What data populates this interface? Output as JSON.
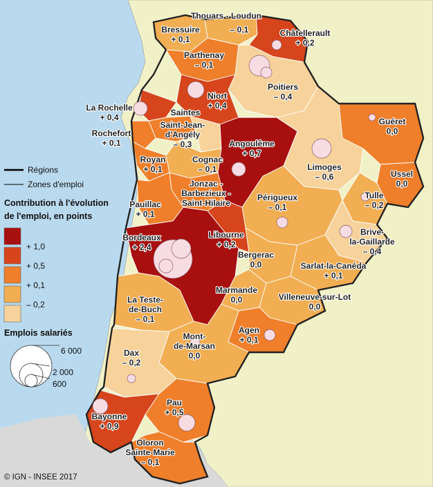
{
  "colors": {
    "sea": "#b9d9ee",
    "outside_land": "#f1f1c8",
    "spain": "#d9d9d9",
    "class_0": "#a80f0f",
    "class_1": "#d6451c",
    "class_2": "#ef7f2a",
    "class_3": "#f2ae52",
    "class_4": "#f7d39b",
    "bubble": "#f7dce3"
  },
  "legend": {
    "regions_label": "Régions",
    "zones_label": "Zones d'emploi",
    "contribution_title_line1": "Contribution à l'évolution",
    "contribution_title_line2": "de l'emploi, en points",
    "class_breaks": [
      "+ 1,0",
      "+ 0,5",
      "+ 0,1",
      "– 0,2"
    ],
    "emplois_title": "Emplois salariés",
    "bubble_values": [
      "6 000",
      "2 000",
      "600"
    ]
  },
  "copyright": "© IGN - INSEE 2017",
  "zones": [
    {
      "id": "thouars",
      "lines": [
        "Thouars - Loudun"
      ]
    },
    {
      "id": "bressuire",
      "lines": [
        "Bressuire",
        "+ 0,1"
      ]
    },
    {
      "id": "thouars_val",
      "lines": [
        "– 0,1"
      ]
    },
    {
      "id": "chatellerault",
      "lines": [
        "Châtellerault",
        "+ 0,2"
      ]
    },
    {
      "id": "parthenay",
      "lines": [
        "Parthenay",
        "– 0,1"
      ]
    },
    {
      "id": "poitiers",
      "lines": [
        "Poitiers",
        "– 0,4"
      ]
    },
    {
      "id": "niort",
      "lines": [
        "Niort",
        "+ 0,4"
      ]
    },
    {
      "id": "la_rochelle",
      "lines": [
        "La Rochelle",
        "+ 0,4"
      ]
    },
    {
      "id": "saintes",
      "lines": [
        "Saintes"
      ]
    },
    {
      "id": "saint_jean",
      "lines": [
        "Saint-Jean-",
        "d'Angély",
        "– 0,3"
      ]
    },
    {
      "id": "rochefort",
      "lines": [
        "Rochefort",
        "+ 0,1"
      ]
    },
    {
      "id": "gueret",
      "lines": [
        "Guéret",
        "0,0"
      ]
    },
    {
      "id": "angouleme",
      "lines": [
        "Angoulême",
        "+ 0,7"
      ]
    },
    {
      "id": "royan",
      "lines": [
        "Royan",
        "+ 0,1"
      ]
    },
    {
      "id": "cognac",
      "lines": [
        "Cognac",
        "– 0,1"
      ]
    },
    {
      "id": "limoges",
      "lines": [
        "Limoges",
        "– 0,6"
      ]
    },
    {
      "id": "ussel",
      "lines": [
        "Ussel",
        "0,0"
      ]
    },
    {
      "id": "jonzac",
      "lines": [
        "Jonzac -",
        "Barbezieux -",
        "Saint-Hilaire"
      ]
    },
    {
      "id": "tulle",
      "lines": [
        "Tulle",
        "– 0,2"
      ]
    },
    {
      "id": "perigueux",
      "lines": [
        "Périgueux",
        "– 0,1"
      ]
    },
    {
      "id": "pauillac",
      "lines": [
        "Pauillac",
        "+ 0,1"
      ]
    },
    {
      "id": "brive",
      "lines": [
        "Brive-",
        "la-Gaillarde",
        "– 0,4"
      ]
    },
    {
      "id": "bordeaux",
      "lines": [
        "Bordeaux",
        "+ 2,4"
      ]
    },
    {
      "id": "libourne",
      "lines": [
        "Libourne",
        "+ 0,2"
      ]
    },
    {
      "id": "bergerac",
      "lines": [
        "Bergerac",
        "0,0"
      ]
    },
    {
      "id": "sarlat",
      "lines": [
        "Sarlat-la-Canéda",
        "+ 0,1"
      ]
    },
    {
      "id": "marmande",
      "lines": [
        "Marmande",
        "0,0"
      ]
    },
    {
      "id": "la_teste",
      "lines": [
        "La Teste-",
        "de-Buch",
        "– 0,1"
      ]
    },
    {
      "id": "villeneuve",
      "lines": [
        "Villeneuve-sur-Lot",
        "0,0"
      ]
    },
    {
      "id": "agen",
      "lines": [
        "Agen",
        "+ 0,1"
      ]
    },
    {
      "id": "mont_de_marsan",
      "lines": [
        "Mont-",
        "de-Marsan",
        "0,0"
      ]
    },
    {
      "id": "dax",
      "lines": [
        "Dax",
        "– 0,2"
      ]
    },
    {
      "id": "bayonne",
      "lines": [
        "Bayonne",
        "+ 0,9"
      ]
    },
    {
      "id": "pau",
      "lines": [
        "Pau",
        "+ 0,5"
      ]
    },
    {
      "id": "oloron",
      "lines": [
        "Oloron",
        "Sainte-Marie",
        "– 0,1"
      ]
    }
  ]
}
